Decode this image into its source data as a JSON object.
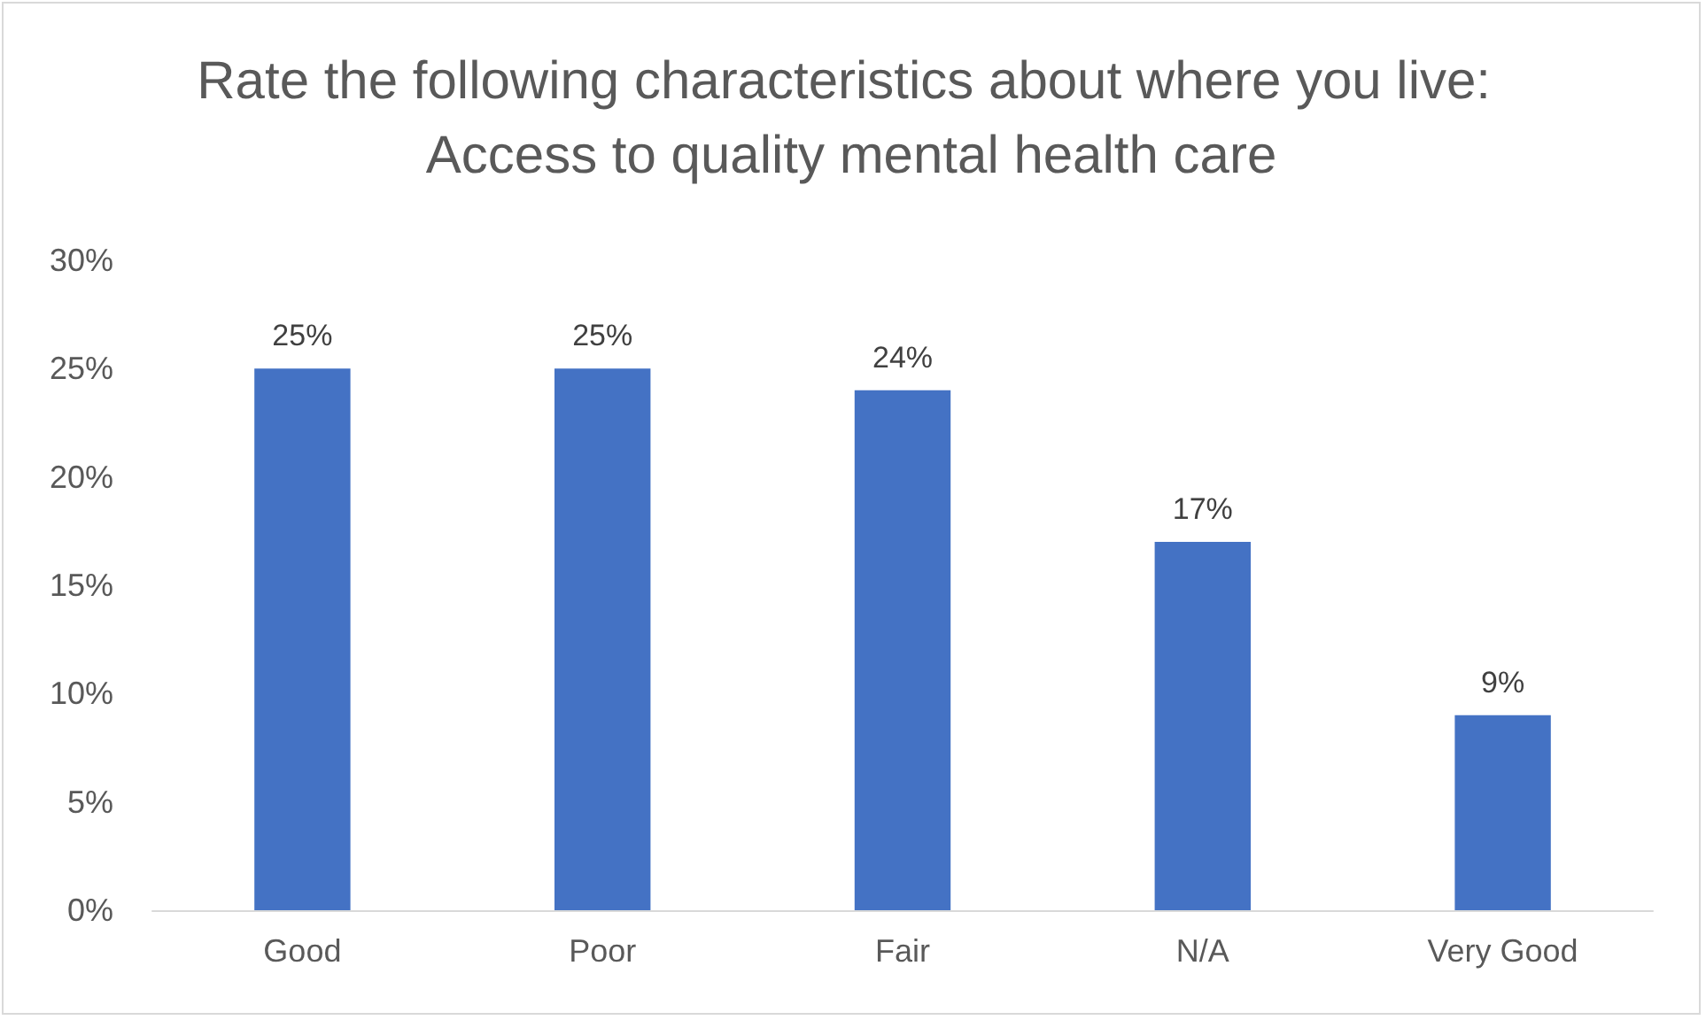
{
  "chart_data": {
    "type": "bar",
    "title": "Rate the following characteristics about where you live: Access to quality mental health care",
    "categories": [
      "Good",
      "Poor",
      "Fair",
      "N/A",
      "Very Good"
    ],
    "values": [
      25,
      25,
      24,
      17,
      9
    ],
    "value_labels": [
      "25%",
      "25%",
      "24%",
      "17%",
      "9%"
    ],
    "color": "#4472c4",
    "ylim": [
      0,
      30
    ],
    "yticks": [
      {
        "value": 0,
        "label": "0%"
      },
      {
        "value": 5,
        "label": "5%"
      },
      {
        "value": 10,
        "label": "10%"
      },
      {
        "value": 15,
        "label": "15%"
      },
      {
        "value": 20,
        "label": "20%"
      },
      {
        "value": 25,
        "label": "25%"
      },
      {
        "value": 30,
        "label": "30%"
      }
    ],
    "grid": false
  }
}
